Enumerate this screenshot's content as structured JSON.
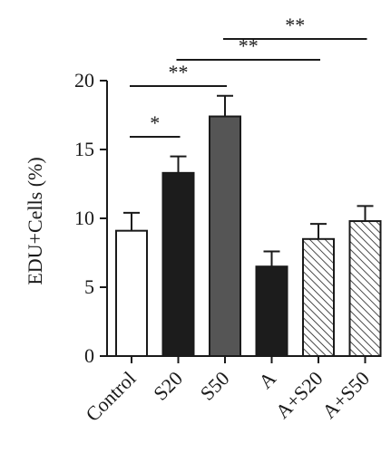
{
  "chart_data": {
    "type": "bar",
    "ylabel": "EDU+Cells (%)",
    "ylim": [
      0,
      20
    ],
    "yticks": [
      0,
      5,
      10,
      15,
      20
    ],
    "categories": [
      "Control",
      "S20",
      "S50",
      "A",
      "A+S20",
      "A+S50"
    ],
    "values": [
      9.1,
      13.3,
      17.4,
      6.5,
      8.5,
      9.8
    ],
    "errors": [
      1.3,
      1.2,
      1.5,
      1.1,
      1.1,
      1.1
    ],
    "bar_styles": [
      "white",
      "black",
      "dark-gray",
      "black",
      "hatched",
      "hatched"
    ],
    "significance": [
      {
        "from": "Control",
        "to": "S20",
        "label": "*"
      },
      {
        "from": "Control",
        "to": "S50",
        "label": "**"
      },
      {
        "from": "S20",
        "to": "A+S20",
        "label": "**"
      },
      {
        "from": "S50",
        "to": "A+S50",
        "label": "**"
      }
    ],
    "colors": {
      "black": "#1c1c1c",
      "dark-gray": "#555555",
      "white": "#ffffff",
      "stroke": "#1a1a1a"
    }
  }
}
